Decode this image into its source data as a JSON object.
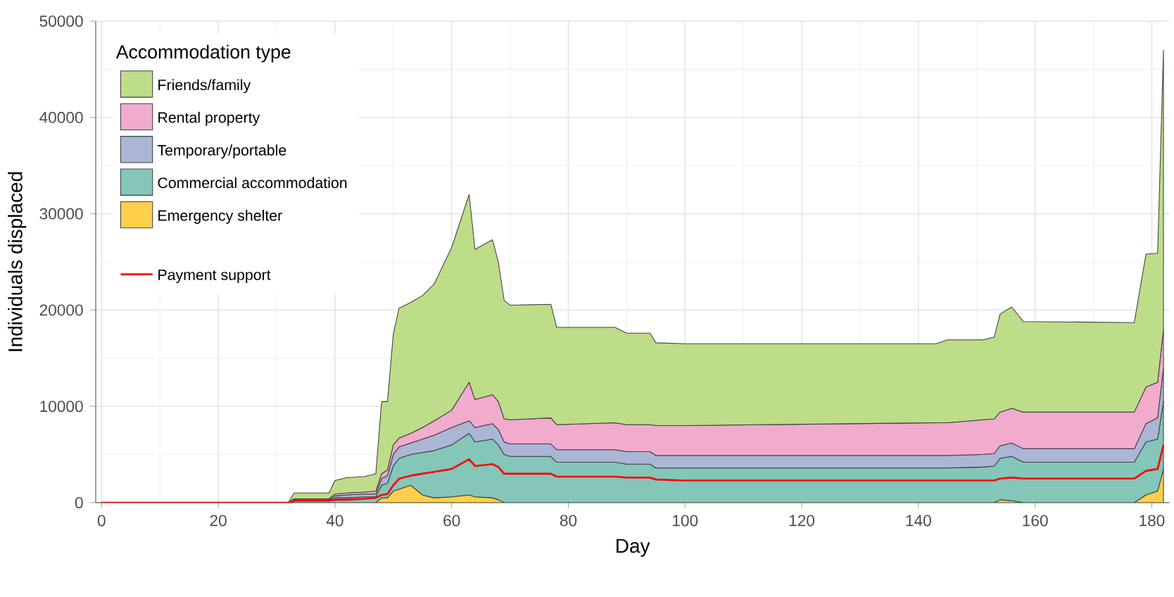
{
  "chart_data": {
    "type": "area",
    "stacked": true,
    "xlabel": "Day",
    "ylabel": "Individuals displaced",
    "legend_title": "Accommodation type",
    "legend": "top left",
    "grid": true,
    "xlim": [
      -1,
      183
    ],
    "ylim": [
      0,
      50000
    ],
    "xticks": [
      0,
      20,
      40,
      60,
      80,
      100,
      120,
      140,
      160,
      180
    ],
    "yticks": [
      0,
      10000,
      20000,
      30000,
      40000,
      50000
    ],
    "x": [
      0,
      32,
      33,
      39,
      40,
      42,
      45,
      47,
      48,
      49,
      50,
      51,
      53,
      55,
      57,
      60,
      63,
      64,
      67,
      68,
      69,
      70,
      77,
      78,
      88,
      90,
      94,
      95,
      100,
      143,
      145,
      151,
      153,
      154,
      156,
      158,
      177,
      179,
      181,
      182
    ],
    "series": [
      {
        "name": "Emergency shelter",
        "color": "#fdcf4a",
        "values": [
          0,
          0,
          0,
          0,
          0,
          0,
          0,
          0,
          500,
          500,
          1200,
          1400,
          1800,
          800,
          500,
          600,
          800,
          600,
          500,
          300,
          0,
          0,
          0,
          0,
          0,
          0,
          0,
          0,
          0,
          0,
          0,
          0,
          0,
          300,
          200,
          0,
          0,
          800,
          1200,
          3500
        ]
      },
      {
        "name": "Commercial accommodation",
        "color": "#84c6b8",
        "values": [
          0,
          0,
          200,
          200,
          500,
          500,
          600,
          600,
          1300,
          1500,
          2600,
          3200,
          3200,
          4400,
          4900,
          5400,
          6400,
          5700,
          6100,
          5700,
          5000,
          4800,
          4800,
          4200,
          4200,
          4000,
          4000,
          3600,
          3600,
          3600,
          3600,
          3700,
          3800,
          4300,
          4600,
          4200,
          4200,
          5500,
          5400,
          7000
        ]
      },
      {
        "name": "Temporary/portable",
        "color": "#abb6d6",
        "values": [
          0,
          0,
          100,
          100,
          200,
          300,
          300,
          300,
          700,
          800,
          1200,
          1200,
          1200,
          1400,
          1600,
          1800,
          1300,
          1500,
          1600,
          1600,
          1300,
          1300,
          1300,
          1300,
          1300,
          1300,
          1300,
          1300,
          1300,
          1300,
          1300,
          1300,
          1300,
          1300,
          1400,
          1400,
          1400,
          1900,
          2200,
          3500
        ]
      },
      {
        "name": "Rental property",
        "color": "#f1abcd",
        "values": [
          0,
          0,
          100,
          100,
          200,
          200,
          200,
          300,
          500,
          600,
          1000,
          900,
          1000,
          1200,
          1500,
          1800,
          4000,
          2900,
          3000,
          2900,
          2400,
          2500,
          2700,
          2600,
          2800,
          2800,
          2800,
          3100,
          3100,
          3400,
          3400,
          3600,
          3600,
          3500,
          3600,
          3800,
          3800,
          3800,
          3700,
          4000
        ]
      },
      {
        "name": "Friends/family",
        "color": "#bedd88",
        "values": [
          0,
          0,
          600,
          600,
          1400,
          1600,
          1600,
          1800,
          7500,
          7100,
          11500,
          13500,
          13600,
          13700,
          14200,
          16900,
          19500,
          15600,
          16100,
          14500,
          12300,
          11900,
          11800,
          10100,
          9900,
          9500,
          9500,
          8600,
          8500,
          8200,
          8600,
          8300,
          8500,
          10200,
          10500,
          9400,
          9300,
          13800,
          13400,
          29000
        ]
      },
      {
        "name": "Payment support",
        "type": "line",
        "color": "#ff0000",
        "values": [
          0,
          0,
          200,
          200,
          300,
          300,
          400,
          500,
          800,
          900,
          1800,
          2500,
          2800,
          3000,
          3200,
          3500,
          4500,
          3800,
          4000,
          3700,
          3000,
          3000,
          3000,
          2700,
          2700,
          2600,
          2600,
          2400,
          2300,
          2300,
          2300,
          2300,
          2300,
          2500,
          2600,
          2500,
          2500,
          3300,
          3500,
          6000
        ]
      }
    ]
  }
}
